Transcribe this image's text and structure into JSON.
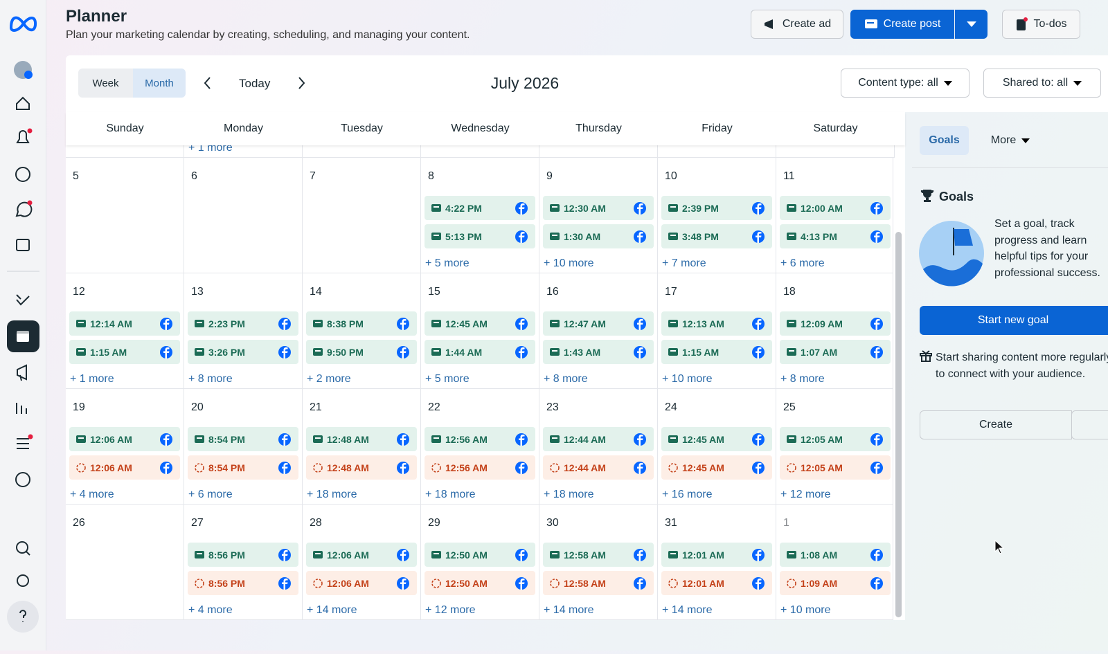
{
  "header": {
    "title": "Planner",
    "subtitle": "Plan your marketing calendar by creating, scheduling, and managing your content."
  },
  "actions": {
    "create_ad": "Create ad",
    "create_post": "Create post",
    "todos": "To-dos"
  },
  "toolbar": {
    "week": "Week",
    "month": "Month",
    "today": "Today",
    "period": "July 2026",
    "content_type": "Content type: all",
    "shared_to": "Shared to: all"
  },
  "weekdays": [
    "Sunday",
    "Monday",
    "Tuesday",
    "Wednesday",
    "Thursday",
    "Friday",
    "Saturday"
  ],
  "top_more": "+ 1 more",
  "weeks": [
    {
      "days": [
        {
          "date": "5",
          "posts": []
        },
        {
          "date": "6",
          "posts": []
        },
        {
          "date": "7",
          "posts": []
        },
        {
          "date": "8",
          "posts": [
            {
              "time": "4:22 PM",
              "color": "#1b6b55"
            },
            {
              "time": "5:13 PM",
              "color": "#1b6b55"
            }
          ],
          "more": "+ 5 more"
        },
        {
          "date": "9",
          "posts": [
            {
              "time": "12:30 AM",
              "color": "#1b6b55"
            },
            {
              "time": "1:30 AM",
              "color": "#1b6b55"
            }
          ],
          "more": "+ 10 more"
        },
        {
          "date": "10",
          "posts": [
            {
              "time": "2:39 PM",
              "color": "#1b6b55"
            },
            {
              "time": "3:48 PM",
              "color": "#1b6b55"
            }
          ],
          "more": "+ 7 more"
        },
        {
          "date": "11",
          "posts": [
            {
              "time": "12:00 AM",
              "color": "#1b6b55"
            },
            {
              "time": "4:13 PM",
              "color": "#1b6b55"
            }
          ],
          "more": "+ 6 more"
        }
      ]
    },
    {
      "days": [
        {
          "date": "12",
          "posts": [
            {
              "time": "12:14 AM",
              "color": "#1b6b55"
            },
            {
              "time": "1:15 AM",
              "color": "#1b6b55"
            }
          ],
          "more": "+ 1 more"
        },
        {
          "date": "13",
          "posts": [
            {
              "time": "2:23 PM",
              "color": "#1b6b55"
            },
            {
              "time": "3:26 PM",
              "color": "#1b6b55"
            }
          ],
          "more": "+ 8 more"
        },
        {
          "date": "14",
          "posts": [
            {
              "time": "8:38 PM",
              "color": "#1b6b55"
            },
            {
              "time": "9:50 PM",
              "color": "#1b6b55"
            }
          ],
          "more": "+ 2 more"
        },
        {
          "date": "15",
          "posts": [
            {
              "time": "12:45 AM",
              "color": "#1b6b55"
            },
            {
              "time": "1:44 AM",
              "color": "#1b6b55"
            }
          ],
          "more": "+ 5 more"
        },
        {
          "date": "16",
          "posts": [
            {
              "time": "12:47 AM",
              "color": "#1b6b55"
            },
            {
              "time": "1:43 AM",
              "color": "#1b6b55"
            }
          ],
          "more": "+ 8 more"
        },
        {
          "date": "17",
          "posts": [
            {
              "time": "12:13 AM",
              "color": "#1b6b55"
            },
            {
              "time": "1:15 AM",
              "color": "#1b6b55"
            }
          ],
          "more": "+ 10 more"
        },
        {
          "date": "18",
          "posts": [
            {
              "time": "12:09 AM",
              "color": "#1b6b55"
            },
            {
              "time": "1:07 AM",
              "color": "#1b6b55"
            }
          ],
          "more": "+ 8 more"
        }
      ]
    },
    {
      "days": [
        {
          "date": "19",
          "posts": [
            {
              "time": "12:06 AM",
              "color": "#1b6b55"
            },
            {
              "time": "12:06 AM",
              "color": "#c4421a"
            }
          ],
          "more": "+ 4 more"
        },
        {
          "date": "20",
          "posts": [
            {
              "time": "8:54 PM",
              "color": "#1b6b55"
            },
            {
              "time": "8:54 PM",
              "color": "#c4421a"
            }
          ],
          "more": "+ 6 more"
        },
        {
          "date": "21",
          "posts": [
            {
              "time": "12:48 AM",
              "color": "#1b6b55"
            },
            {
              "time": "12:48 AM",
              "color": "#c4421a"
            }
          ],
          "more": "+ 18 more"
        },
        {
          "date": "22",
          "posts": [
            {
              "time": "12:56 AM",
              "color": "#1b6b55"
            },
            {
              "time": "12:56 AM",
              "color": "#c4421a"
            }
          ],
          "more": "+ 18 more"
        },
        {
          "date": "23",
          "posts": [
            {
              "time": "12:44 AM",
              "color": "#1b6b55"
            },
            {
              "time": "12:44 AM",
              "color": "#c4421a"
            }
          ],
          "more": "+ 18 more"
        },
        {
          "date": "24",
          "posts": [
            {
              "time": "12:45 AM",
              "color": "#1b6b55"
            },
            {
              "time": "12:45 AM",
              "color": "#c4421a"
            }
          ],
          "more": "+ 16 more"
        },
        {
          "date": "25",
          "posts": [
            {
              "time": "12:05 AM",
              "color": "#1b6b55"
            },
            {
              "time": "12:05 AM",
              "color": "#c4421a"
            }
          ],
          "more": "+ 12 more"
        }
      ]
    },
    {
      "days": [
        {
          "date": "26",
          "posts": []
        },
        {
          "date": "27",
          "posts": [
            {
              "time": "8:56 PM",
              "color": "#1b6b55"
            },
            {
              "time": "8:56 PM",
              "color": "#c4421a"
            }
          ],
          "more": "+ 4 more"
        },
        {
          "date": "28",
          "posts": [
            {
              "time": "12:06 AM",
              "color": "#1b6b55"
            },
            {
              "time": "12:06 AM",
              "color": "#c4421a"
            }
          ],
          "more": "+ 14 more"
        },
        {
          "date": "29",
          "posts": [
            {
              "time": "12:50 AM",
              "color": "#1b6b55"
            },
            {
              "time": "12:50 AM",
              "color": "#c4421a"
            }
          ],
          "more": "+ 12 more"
        },
        {
          "date": "30",
          "posts": [
            {
              "time": "12:58 AM",
              "color": "#1b6b55"
            },
            {
              "time": "12:58 AM",
              "color": "#c4421a"
            }
          ],
          "more": "+ 14 more"
        },
        {
          "date": "31",
          "posts": [
            {
              "time": "12:01 AM",
              "color": "#1b6b55"
            },
            {
              "time": "12:01 AM",
              "color": "#c4421a"
            }
          ],
          "more": "+ 14 more"
        },
        {
          "date": "1",
          "muted": true,
          "posts": [
            {
              "time": "1:08 AM",
              "color": "#1b6b55"
            },
            {
              "time": "1:09 AM",
              "color": "#c4421a"
            }
          ],
          "more": "+ 10 more"
        }
      ]
    }
  ],
  "sidebar": {
    "tab_goals": "Goals",
    "tab_more": "More",
    "heading": "Goals",
    "text": "Set a goal, track progress and learn helpful tips for your professional success.",
    "start_goal": "Start new goal",
    "sharing": "Start sharing content more regularly to connect with your audience.",
    "create": "Create"
  }
}
